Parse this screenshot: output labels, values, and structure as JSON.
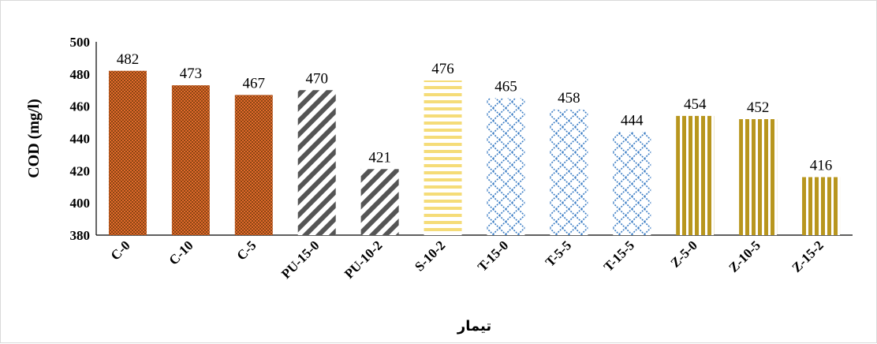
{
  "chart_data": {
    "type": "bar",
    "categories": [
      "C-0",
      "C-10",
      "C-5",
      "PU-15-0",
      "PU-10-2",
      "S-10-2",
      "T-15-0",
      "T-5-5",
      "T-15-5",
      "Z-5-0",
      "Z-10-5",
      "Z-15-2"
    ],
    "values": [
      482,
      473,
      467,
      470,
      421,
      476,
      465,
      458,
      444,
      454,
      452,
      416
    ],
    "data_labels": [
      "482",
      "473",
      "467",
      "470",
      "421",
      "476",
      "465",
      "458",
      "444",
      "454",
      "452",
      "416"
    ],
    "xlabel": "تیمار",
    "ylabel": "COD (mg/l)",
    "ylim": [
      380,
      500
    ],
    "yticks": [
      380,
      400,
      420,
      440,
      460,
      480,
      500
    ],
    "grid": false,
    "legend": "none",
    "bar_styles": [
      {
        "group": "C",
        "pattern": "checker",
        "fg": "#8b4513",
        "bg": "#e06a2c"
      },
      {
        "group": "PU",
        "pattern": "diagonal",
        "fg": "#555555",
        "bg": "#ffffff"
      },
      {
        "group": "S",
        "pattern": "horizontal",
        "fg": "#f5dc78",
        "bg": "#ffffff"
      },
      {
        "group": "T",
        "pattern": "weave",
        "fg": "#3a7cc4",
        "bg": "#ffffff"
      },
      {
        "group": "Z",
        "pattern": "vertical",
        "fg": "#b8961e",
        "bg": "#ffffff"
      }
    ]
  }
}
